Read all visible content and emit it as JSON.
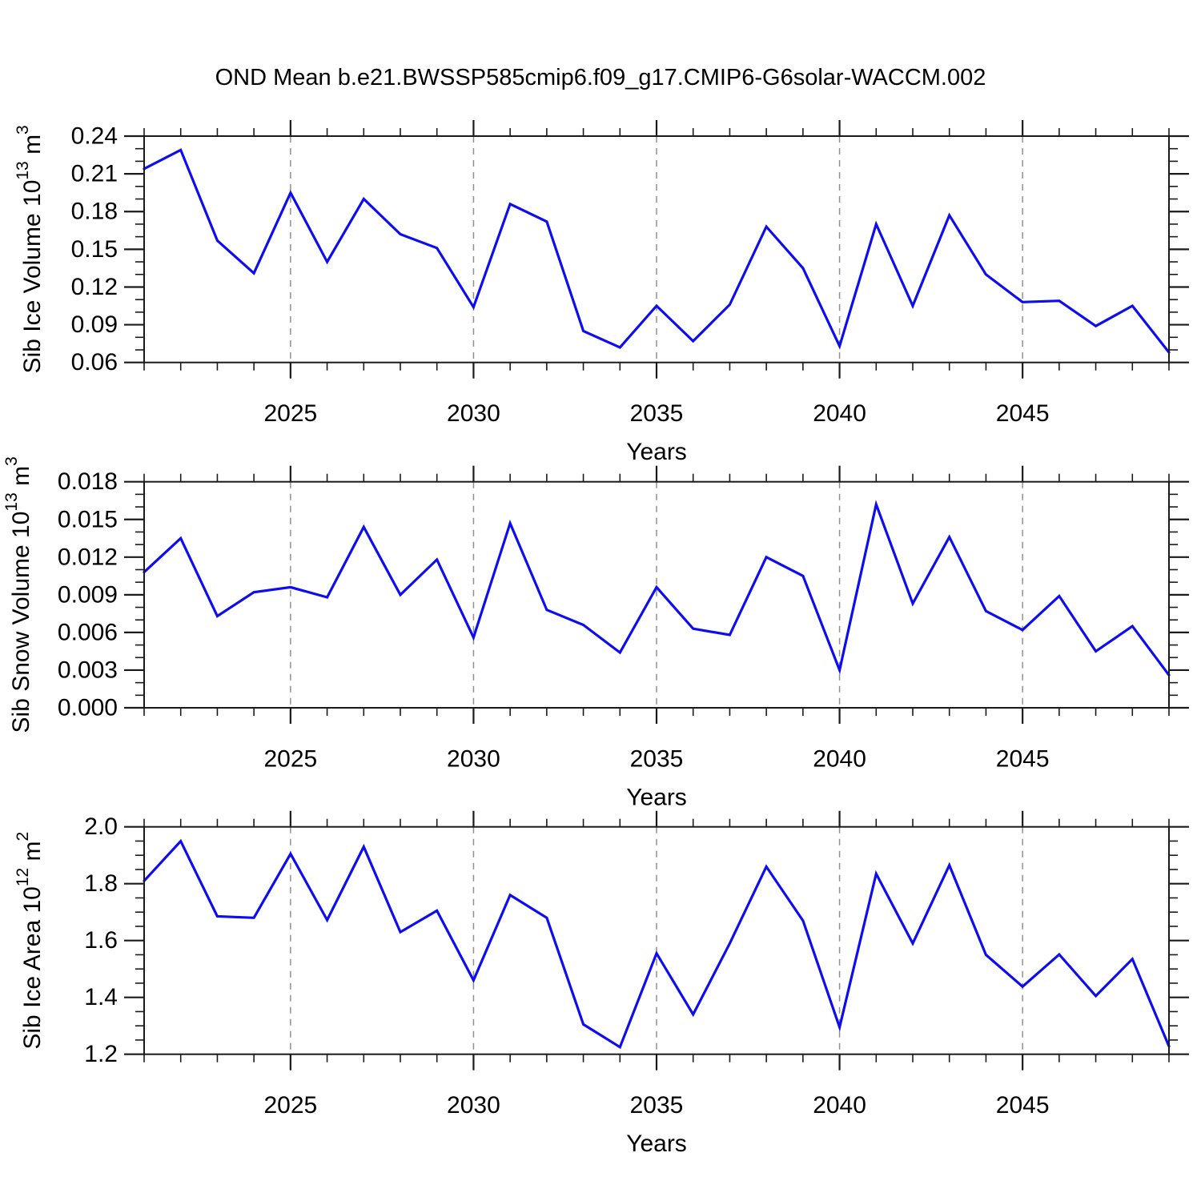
{
  "title": "OND Mean b.e21.BWSSP585cmip6.f09_g17.CMIP6-G6solar-WACCM.002",
  "x_axis": {
    "label": "Years",
    "start": 2021,
    "end": 2049,
    "major_ticks": [
      2025,
      2030,
      2035,
      2040,
      2045
    ],
    "minor_step_years": 1
  },
  "style": {
    "line_color": "#0d0df0",
    "grid_color": "#909090",
    "axis_color": "#1a1a1a",
    "text_color": "#000000"
  },
  "chart_data": [
    {
      "type": "line",
      "name": "sib-ice-volume",
      "ylabel_segments": [
        {
          "t": "Sib Ice Volume 10"
        },
        {
          "sup": "13"
        },
        {
          "t": " m"
        },
        {
          "sup": "3"
        }
      ],
      "ylim": [
        0.06,
        0.24
      ],
      "y_major_ticks": [
        0.06,
        0.09,
        0.12,
        0.15,
        0.18,
        0.21,
        0.24
      ],
      "y_major_labels": [
        "0.06",
        "0.09",
        "0.12",
        "0.15",
        "0.18",
        "0.21",
        "0.24"
      ],
      "y_minor_step": 0.01,
      "years": [
        2021,
        2022,
        2023,
        2024,
        2025,
        2026,
        2027,
        2028,
        2029,
        2030,
        2031,
        2032,
        2033,
        2034,
        2035,
        2036,
        2037,
        2038,
        2039,
        2040,
        2041,
        2042,
        2043,
        2044,
        2045,
        2046,
        2047,
        2048,
        2049
      ],
      "values": [
        0.214,
        0.229,
        0.157,
        0.131,
        0.195,
        0.14,
        0.19,
        0.162,
        0.151,
        0.104,
        0.186,
        0.172,
        0.085,
        0.072,
        0.105,
        0.077,
        0.106,
        0.168,
        0.135,
        0.073,
        0.17,
        0.105,
        0.177,
        0.13,
        0.108,
        0.109,
        0.089,
        0.105,
        0.068
      ]
    },
    {
      "type": "line",
      "name": "sib-snow-volume",
      "ylabel_segments": [
        {
          "t": "Sib Snow Volume 10"
        },
        {
          "sup": "13"
        },
        {
          "t": " m"
        },
        {
          "sup": "3"
        }
      ],
      "ylim": [
        0.0,
        0.018
      ],
      "y_major_ticks": [
        0.0,
        0.003,
        0.006,
        0.009,
        0.012,
        0.015,
        0.018
      ],
      "y_major_labels": [
        "0.000",
        "0.003",
        "0.006",
        "0.009",
        "0.012",
        "0.015",
        "0.018"
      ],
      "y_minor_step": 0.001,
      "years": [
        2021,
        2022,
        2023,
        2024,
        2025,
        2026,
        2027,
        2028,
        2029,
        2030,
        2031,
        2032,
        2033,
        2034,
        2035,
        2036,
        2037,
        2038,
        2039,
        2040,
        2041,
        2042,
        2043,
        2044,
        2045,
        2046,
        2047,
        2048,
        2049
      ],
      "values": [
        0.0108,
        0.0135,
        0.0073,
        0.0092,
        0.0096,
        0.0088,
        0.0144,
        0.009,
        0.0118,
        0.0056,
        0.0147,
        0.0078,
        0.0066,
        0.0044,
        0.0096,
        0.0063,
        0.0058,
        0.012,
        0.0105,
        0.003,
        0.0162,
        0.0083,
        0.0136,
        0.0077,
        0.0062,
        0.0089,
        0.0045,
        0.0065,
        0.0026
      ]
    },
    {
      "type": "line",
      "name": "sib-ice-area",
      "ylabel_segments": [
        {
          "t": "Sib Ice Area 10"
        },
        {
          "sup": "12"
        },
        {
          "t": " m"
        },
        {
          "sup": "2"
        }
      ],
      "ylim": [
        1.2,
        2.0
      ],
      "y_major_ticks": [
        1.2,
        1.4,
        1.6,
        1.8,
        2.0
      ],
      "y_major_labels": [
        "1.2",
        "1.4",
        "1.6",
        "1.8",
        "2.0"
      ],
      "y_minor_step": 0.05,
      "years": [
        2021,
        2022,
        2023,
        2024,
        2025,
        2026,
        2027,
        2028,
        2029,
        2030,
        2031,
        2032,
        2033,
        2034,
        2035,
        2036,
        2037,
        2038,
        2039,
        2040,
        2041,
        2042,
        2043,
        2044,
        2045,
        2046,
        2047,
        2048,
        2049
      ],
      "values": [
        1.81,
        1.95,
        1.685,
        1.68,
        1.905,
        1.672,
        1.93,
        1.63,
        1.705,
        1.46,
        1.76,
        1.68,
        1.305,
        1.225,
        1.555,
        1.34,
        1.59,
        1.86,
        1.67,
        1.295,
        1.835,
        1.59,
        1.865,
        1.55,
        1.438,
        1.551,
        1.405,
        1.535,
        1.228
      ]
    }
  ]
}
